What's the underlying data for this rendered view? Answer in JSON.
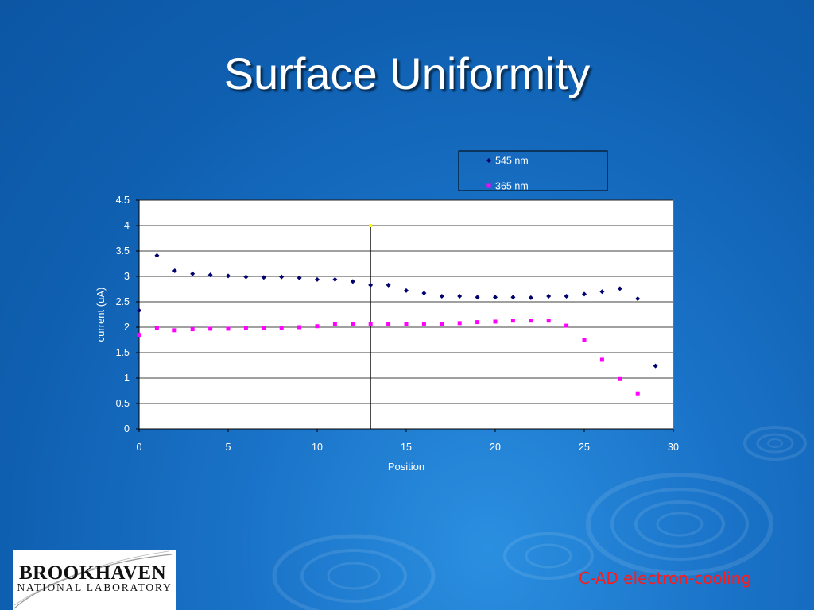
{
  "slide": {
    "title": "Surface Uniformity",
    "footer": "C-AD electron-cooling",
    "logo": {
      "top": "BROOKHAVEN",
      "bottom": "NATIONAL LABORATORY"
    }
  },
  "colors": {
    "series_545": "#00006e",
    "series_365": "#ff00ff",
    "marker_highlight": "#ffff00",
    "footer": "#ff1a1a"
  },
  "chart_data": {
    "type": "scatter",
    "title": "",
    "xlabel": "Position",
    "ylabel": "current (uA)",
    "xlim": [
      0,
      30
    ],
    "ylim": [
      0,
      4.5
    ],
    "xticks": [
      0,
      5,
      10,
      15,
      20,
      25,
      30
    ],
    "yticks": [
      0,
      0.5,
      1,
      1.5,
      2,
      2.5,
      3,
      3.5,
      4,
      4.5
    ],
    "grid": "horizontal",
    "legend": "top-right",
    "vline_x": 13,
    "highlight_point": {
      "x": 13,
      "y": 4.0
    },
    "series": [
      {
        "name": "545 nm",
        "marker": "diamond",
        "x": [
          0,
          1,
          2,
          3,
          4,
          5,
          6,
          7,
          8,
          9,
          10,
          11,
          12,
          13,
          14,
          15,
          16,
          17,
          18,
          19,
          20,
          21,
          22,
          23,
          24,
          25,
          26,
          27,
          28,
          29
        ],
        "y": [
          2.33,
          3.41,
          3.11,
          3.05,
          3.03,
          3.01,
          2.99,
          2.98,
          2.99,
          2.97,
          2.94,
          2.94,
          2.9,
          2.83,
          2.83,
          2.72,
          2.67,
          2.61,
          2.61,
          2.59,
          2.59,
          2.59,
          2.58,
          2.61,
          2.61,
          2.65,
          2.7,
          2.76,
          2.56,
          1.24
        ]
      },
      {
        "name": "365 nm",
        "marker": "square",
        "x": [
          0,
          1,
          2,
          3,
          4,
          5,
          6,
          7,
          8,
          9,
          10,
          11,
          12,
          13,
          14,
          15,
          16,
          17,
          18,
          19,
          20,
          21,
          22,
          23,
          24,
          25,
          26,
          27,
          28
        ],
        "y": [
          1.85,
          1.99,
          1.94,
          1.96,
          1.97,
          1.97,
          1.98,
          1.99,
          1.99,
          2.0,
          2.02,
          2.06,
          2.06,
          2.06,
          2.06,
          2.06,
          2.06,
          2.06,
          2.08,
          2.1,
          2.11,
          2.13,
          2.13,
          2.13,
          2.03,
          1.75,
          1.36,
          0.98,
          0.7
        ]
      }
    ]
  }
}
